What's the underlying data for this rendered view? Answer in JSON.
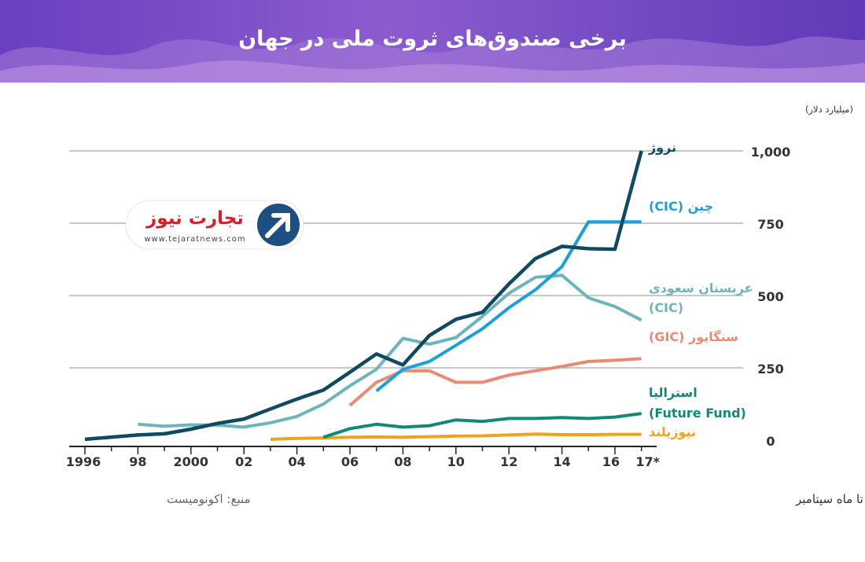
{
  "title": "برخی صندوق‌های ثروت ملی در جهان",
  "unit_label": "(میلیارد دلار)",
  "source_note": "منبع: اکونومیست",
  "footnote": "* تا ماه سپتامبر",
  "logo": {
    "name": "تجارت نیوز",
    "url": "www.tejaratnews.com"
  },
  "chart_data": {
    "type": "line",
    "x_tick_labels": [
      "1996",
      "98",
      "2000",
      "02",
      "04",
      "06",
      "08",
      "10",
      "12",
      "14",
      "16",
      "17*"
    ],
    "y_tick_labels": [
      "0",
      "250",
      "500",
      "750",
      "1,000"
    ],
    "xlim": [
      1996,
      2017
    ],
    "ylim": [
      0,
      1000
    ],
    "grid": true,
    "series": [
      {
        "name": "نروژ",
        "color": "#0f4a63",
        "points": [
          [
            1996,
            3
          ],
          [
            1998,
            18
          ],
          [
            1999,
            22
          ],
          [
            2000,
            38
          ],
          [
            2001,
            58
          ],
          [
            2002,
            73
          ],
          [
            2003,
            108
          ],
          [
            2004,
            142
          ],
          [
            2005,
            173
          ],
          [
            2006,
            235
          ],
          [
            2007,
            298
          ],
          [
            2008,
            260
          ],
          [
            2009,
            362
          ],
          [
            2010,
            418
          ],
          [
            2011,
            442
          ],
          [
            2012,
            540
          ],
          [
            2013,
            628
          ],
          [
            2014,
            670
          ],
          [
            2015,
            662
          ],
          [
            2016,
            660
          ],
          [
            2017,
            1000
          ]
        ]
      },
      {
        "name": "چین",
        "label_suffix": "(CIC)",
        "color": "#1aa1dc",
        "points": [
          [
            2007,
            170
          ],
          [
            2008,
            245
          ],
          [
            2009,
            272
          ],
          [
            2010,
            328
          ],
          [
            2011,
            385
          ],
          [
            2012,
            458
          ],
          [
            2013,
            520
          ],
          [
            2014,
            600
          ],
          [
            2015,
            755
          ],
          [
            2016,
            755
          ],
          [
            2017,
            755
          ]
        ]
      },
      {
        "name": "عربستان سعودی",
        "label_line2": "(CIC)",
        "color": "#6db5bd",
        "points": [
          [
            1998,
            55
          ],
          [
            1999,
            48
          ],
          [
            2000,
            53
          ],
          [
            2001,
            52
          ],
          [
            2002,
            45
          ],
          [
            2003,
            60
          ],
          [
            2004,
            82
          ],
          [
            2005,
            125
          ],
          [
            2006,
            188
          ],
          [
            2007,
            245
          ],
          [
            2008,
            352
          ],
          [
            2009,
            332
          ],
          [
            2010,
            355
          ],
          [
            2011,
            428
          ],
          [
            2012,
            508
          ],
          [
            2013,
            563
          ],
          [
            2014,
            570
          ],
          [
            2015,
            492
          ],
          [
            2016,
            462
          ],
          [
            2017,
            415
          ]
        ]
      },
      {
        "name": "سنگاپور",
        "label_suffix": "(GIC)",
        "color": "#eb8a73",
        "points": [
          [
            2006,
            120
          ],
          [
            2007,
            200
          ],
          [
            2008,
            240
          ],
          [
            2009,
            240
          ],
          [
            2010,
            200
          ],
          [
            2011,
            200
          ],
          [
            2012,
            225
          ],
          [
            2013,
            240
          ],
          [
            2014,
            255
          ],
          [
            2015,
            272
          ],
          [
            2016,
            276
          ],
          [
            2017,
            282
          ]
        ]
      },
      {
        "name": "استرالیا",
        "label_line2": "(Future Fund)",
        "color": "#0f8a75",
        "points": [
          [
            2005,
            10
          ],
          [
            2006,
            40
          ],
          [
            2007,
            55
          ],
          [
            2008,
            45
          ],
          [
            2009,
            50
          ],
          [
            2010,
            70
          ],
          [
            2011,
            65
          ],
          [
            2012,
            75
          ],
          [
            2013,
            75
          ],
          [
            2014,
            78
          ],
          [
            2015,
            75
          ],
          [
            2016,
            80
          ],
          [
            2017,
            92
          ]
        ]
      },
      {
        "name": "نیوزیلند",
        "color": "#f0a21c",
        "points": [
          [
            2003,
            3
          ],
          [
            2004,
            6
          ],
          [
            2005,
            8
          ],
          [
            2006,
            10
          ],
          [
            2007,
            11
          ],
          [
            2008,
            10
          ],
          [
            2009,
            12
          ],
          [
            2010,
            14
          ],
          [
            2011,
            15
          ],
          [
            2012,
            18
          ],
          [
            2013,
            21
          ],
          [
            2014,
            19
          ],
          [
            2015,
            19
          ],
          [
            2016,
            20
          ],
          [
            2017,
            20
          ]
        ]
      }
    ]
  }
}
